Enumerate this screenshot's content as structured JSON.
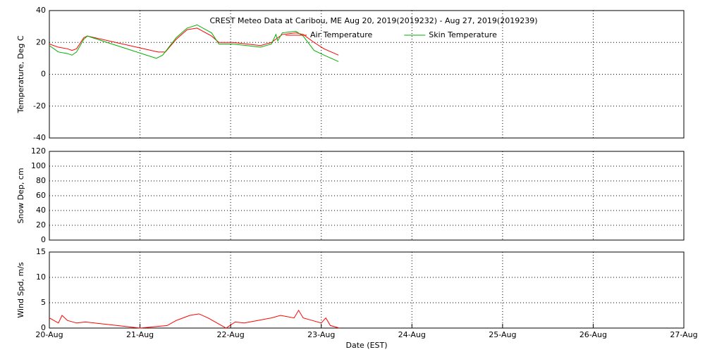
{
  "chart_data": [
    {
      "type": "line",
      "title": "CREST Meteo Data at Caribou, ME   Aug 20, 2019(2019232) - Aug 27, 2019(2019239)",
      "y_label": "Temperature, Deg C",
      "ylim": [
        -40,
        40
      ],
      "yticks": [
        -40,
        -20,
        0,
        20,
        40
      ],
      "grid": true,
      "legend": "top",
      "series": [
        {
          "name": "Air Temperature",
          "color": "#ff0000",
          "x": [
            0,
            0.1,
            0.2,
            0.25,
            0.3,
            0.38,
            0.42,
            1.2,
            1.28,
            1.4,
            1.52,
            1.63,
            1.79,
            1.87,
            2.02,
            2.18,
            2.33,
            2.45,
            2.57,
            2.72,
            2.8,
            2.92,
            3.03,
            3.19
          ],
          "values": [
            19,
            17,
            16,
            15,
            16,
            23,
            24,
            14,
            14,
            22,
            28,
            29,
            24,
            20,
            20,
            19,
            18,
            20,
            25,
            26,
            25,
            20,
            16,
            12
          ]
        },
        {
          "name": "Skin Temperature",
          "color": "#00b000",
          "x": [
            0,
            0.1,
            0.2,
            0.25,
            0.3,
            0.38,
            0.42,
            1.18,
            1.25,
            1.4,
            1.52,
            1.63,
            1.79,
            1.87,
            2.02,
            2.18,
            2.33,
            2.45,
            2.5,
            2.52,
            2.57,
            2.72,
            2.8,
            2.92,
            3.03,
            3.19
          ],
          "values": [
            18,
            14,
            13,
            12,
            14,
            22,
            24,
            10,
            12,
            23,
            29,
            31,
            26,
            19,
            19,
            18,
            17,
            19,
            25,
            21,
            26,
            27,
            24,
            15,
            12,
            8
          ]
        }
      ]
    },
    {
      "type": "line",
      "y_label": "Snow Dep, cm",
      "ylim": [
        0,
        120
      ],
      "yticks": [
        0,
        20,
        40,
        60,
        80,
        100,
        120
      ],
      "grid": true,
      "series": []
    },
    {
      "type": "line",
      "y_label": "Wind Spd, m/s",
      "x_label": "Date (EST)",
      "ylim": [
        0,
        15
      ],
      "yticks": [
        0,
        5,
        10,
        15
      ],
      "grid": true,
      "xlim": [
        0,
        7
      ],
      "xticks": [
        {
          "value": 0,
          "label": "20-Aug"
        },
        {
          "value": 1,
          "label": "21-Aug"
        },
        {
          "value": 2,
          "label": "22-Aug"
        },
        {
          "value": 3,
          "label": "23-Aug"
        },
        {
          "value": 4,
          "label": "24-Aug"
        },
        {
          "value": 5,
          "label": "25-Aug"
        },
        {
          "value": 6,
          "label": "26-Aug"
        },
        {
          "value": 7,
          "label": "27-Aug"
        }
      ],
      "series": [
        {
          "name": "Wind Speed",
          "color": "#ff0000",
          "x": [
            0,
            0.1,
            0.14,
            0.2,
            0.3,
            0.4,
            1.0,
            1.3,
            1.4,
            1.55,
            1.65,
            1.75,
            1.85,
            1.95,
            2.05,
            2.15,
            2.3,
            2.45,
            2.55,
            2.7,
            2.75,
            2.8,
            2.9,
            3.0,
            3.05,
            3.1,
            3.2
          ],
          "values": [
            2,
            1,
            2.5,
            1.5,
            1,
            1.2,
            0,
            0.5,
            1.5,
            2.5,
            2.8,
            2,
            1,
            0,
            1.2,
            1,
            1.5,
            2,
            2.5,
            2,
            3.5,
            2,
            1.5,
            1,
            2,
            0.5,
            0
          ]
        }
      ]
    }
  ]
}
